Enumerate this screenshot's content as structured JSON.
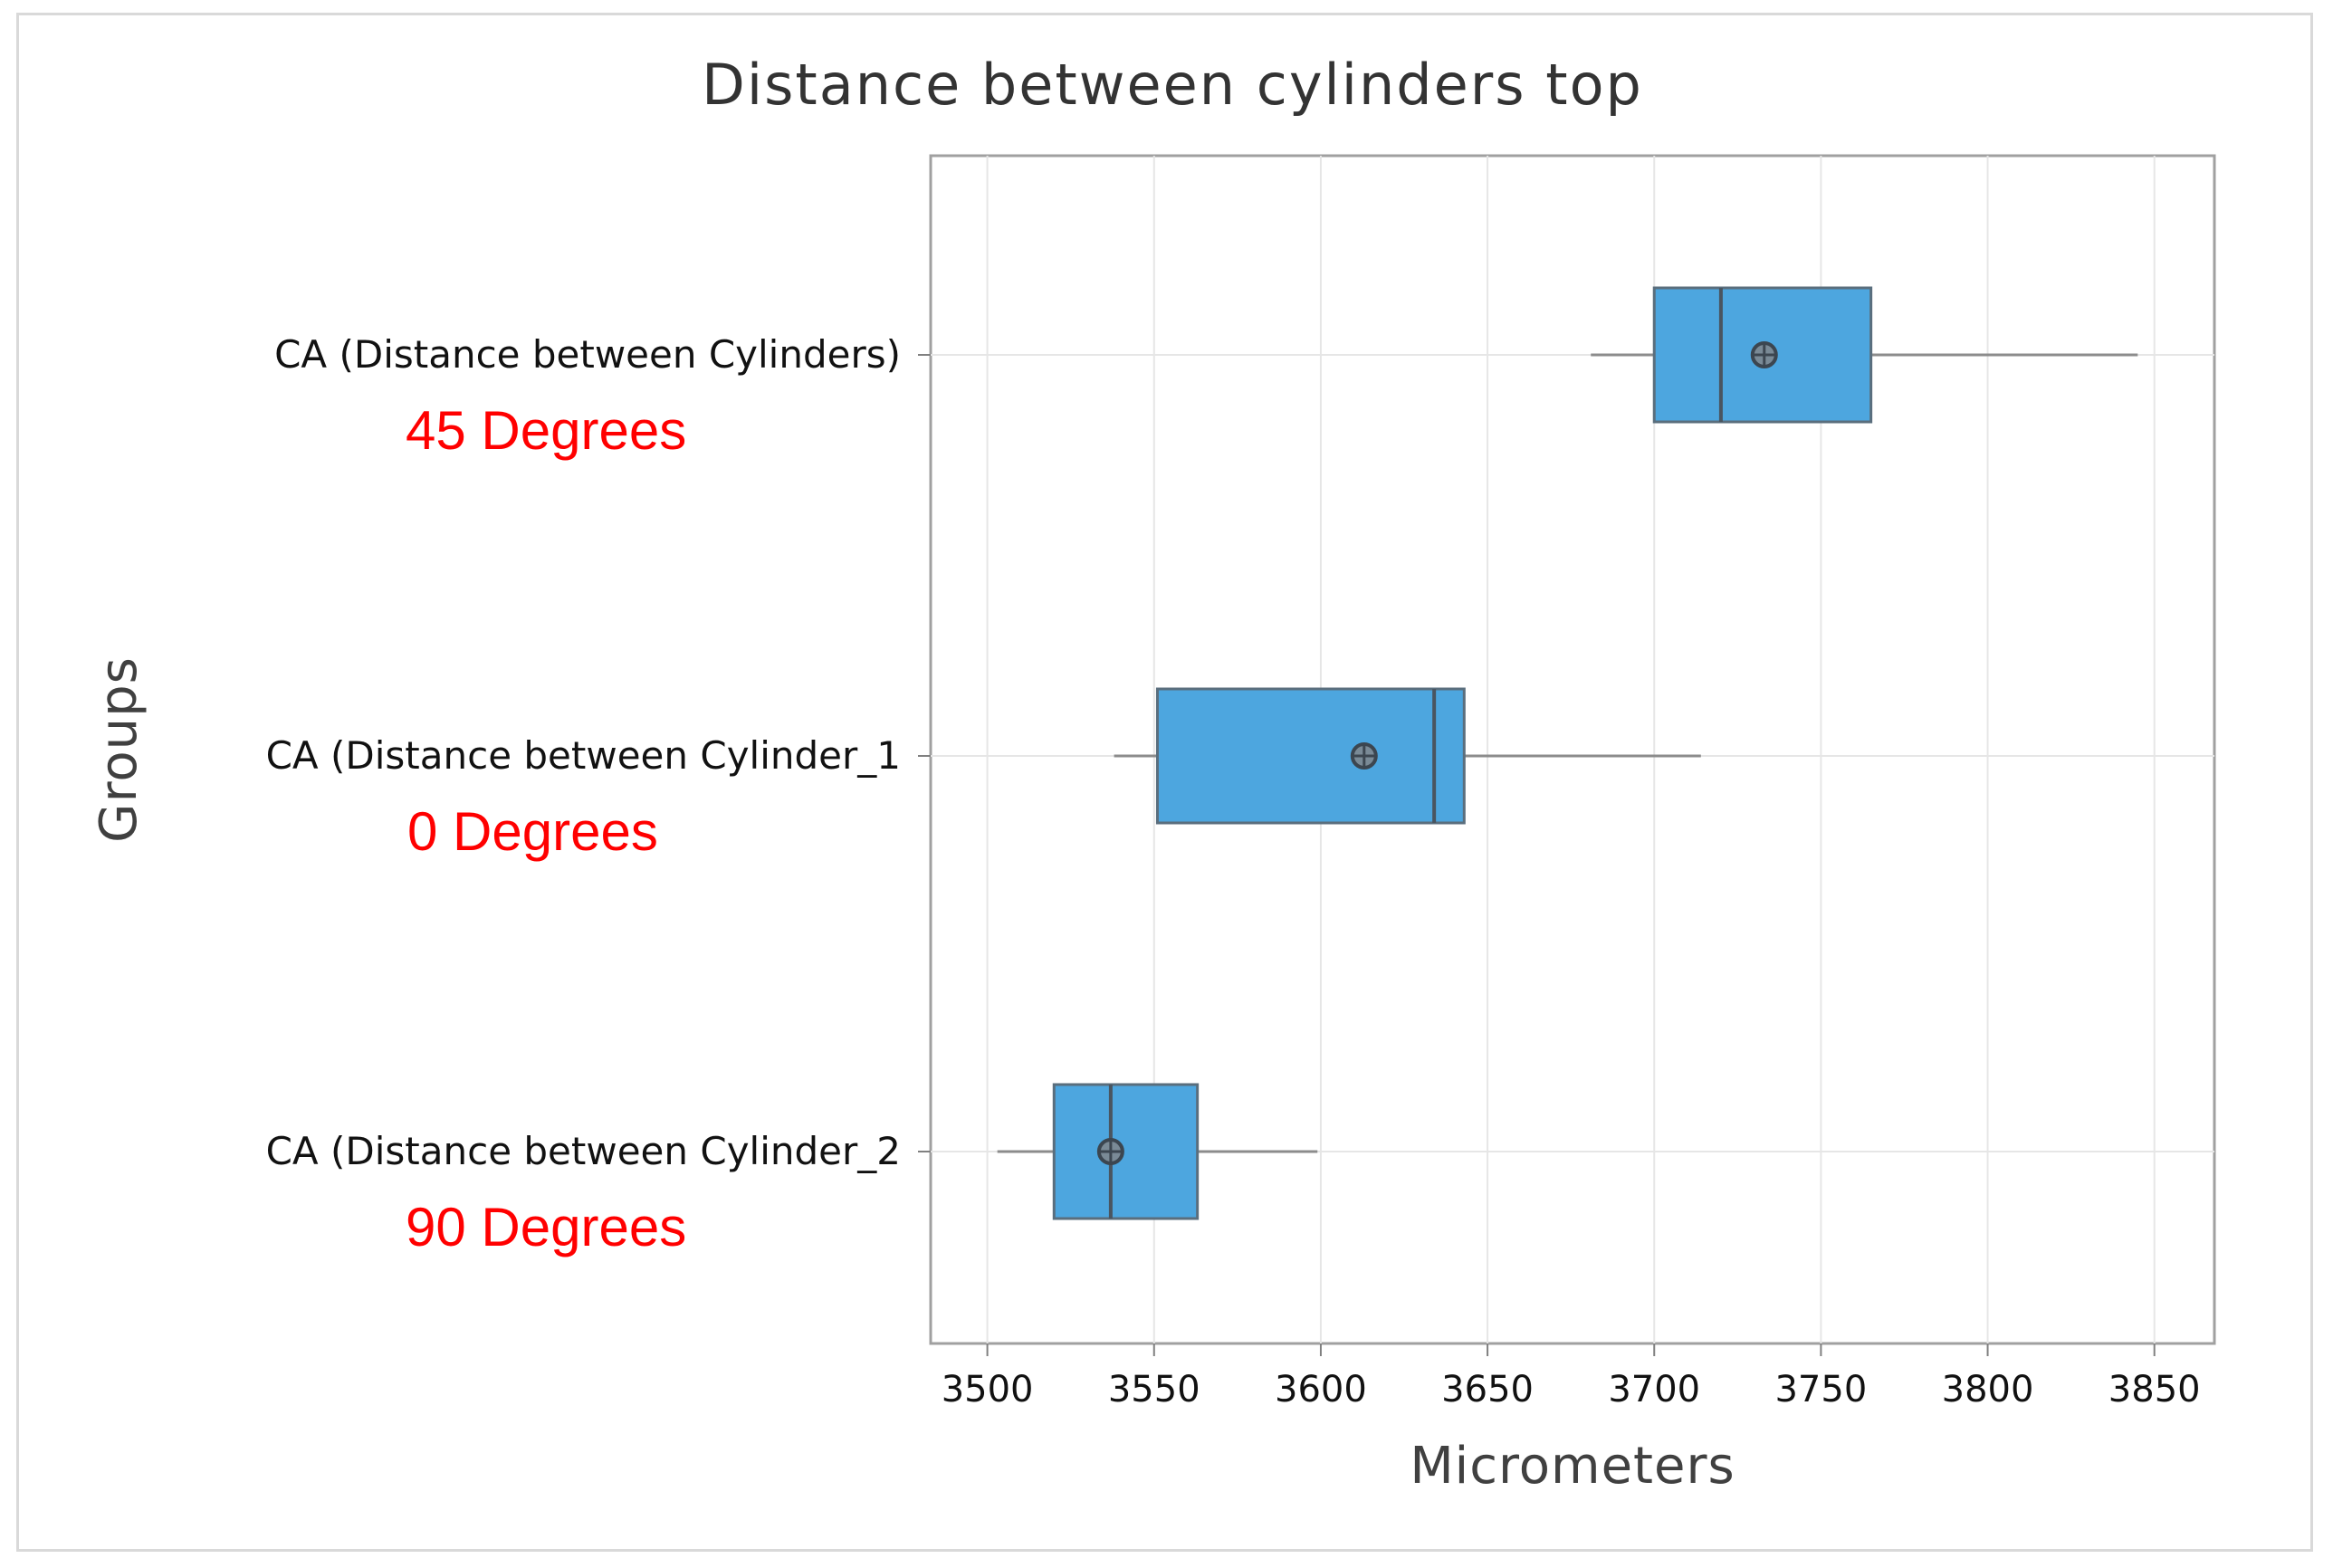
{
  "chart_data": {
    "type": "boxplot",
    "orientation": "horizontal",
    "title": "Distance between cylinders top",
    "xlabel": "Micrometers",
    "ylabel": "Groups",
    "xlim": [
      3483,
      3868
    ],
    "xticks": [
      3500,
      3550,
      3600,
      3650,
      3700,
      3750,
      3800,
      3850
    ],
    "grid": true,
    "box_color": "#4da6df",
    "groups": [
      {
        "label": "CA (Distance between Cylinders)",
        "annotation": "45 Degrees",
        "min": 3681,
        "q1": 3700,
        "median": 3720,
        "q3": 3765,
        "max": 3845,
        "mean": 3733
      },
      {
        "label": "CA (Distance between Cylinder_1",
        "annotation": "0 Degrees",
        "min": 3538,
        "q1": 3551,
        "median": 3634,
        "q3": 3643,
        "max": 3714,
        "mean": 3613
      },
      {
        "label": "CA (Distance between Cylinder_2",
        "annotation": "90 Degrees",
        "min": 3503,
        "q1": 3520,
        "median": 3537,
        "q3": 3563,
        "max": 3599,
        "mean": 3537
      }
    ]
  }
}
